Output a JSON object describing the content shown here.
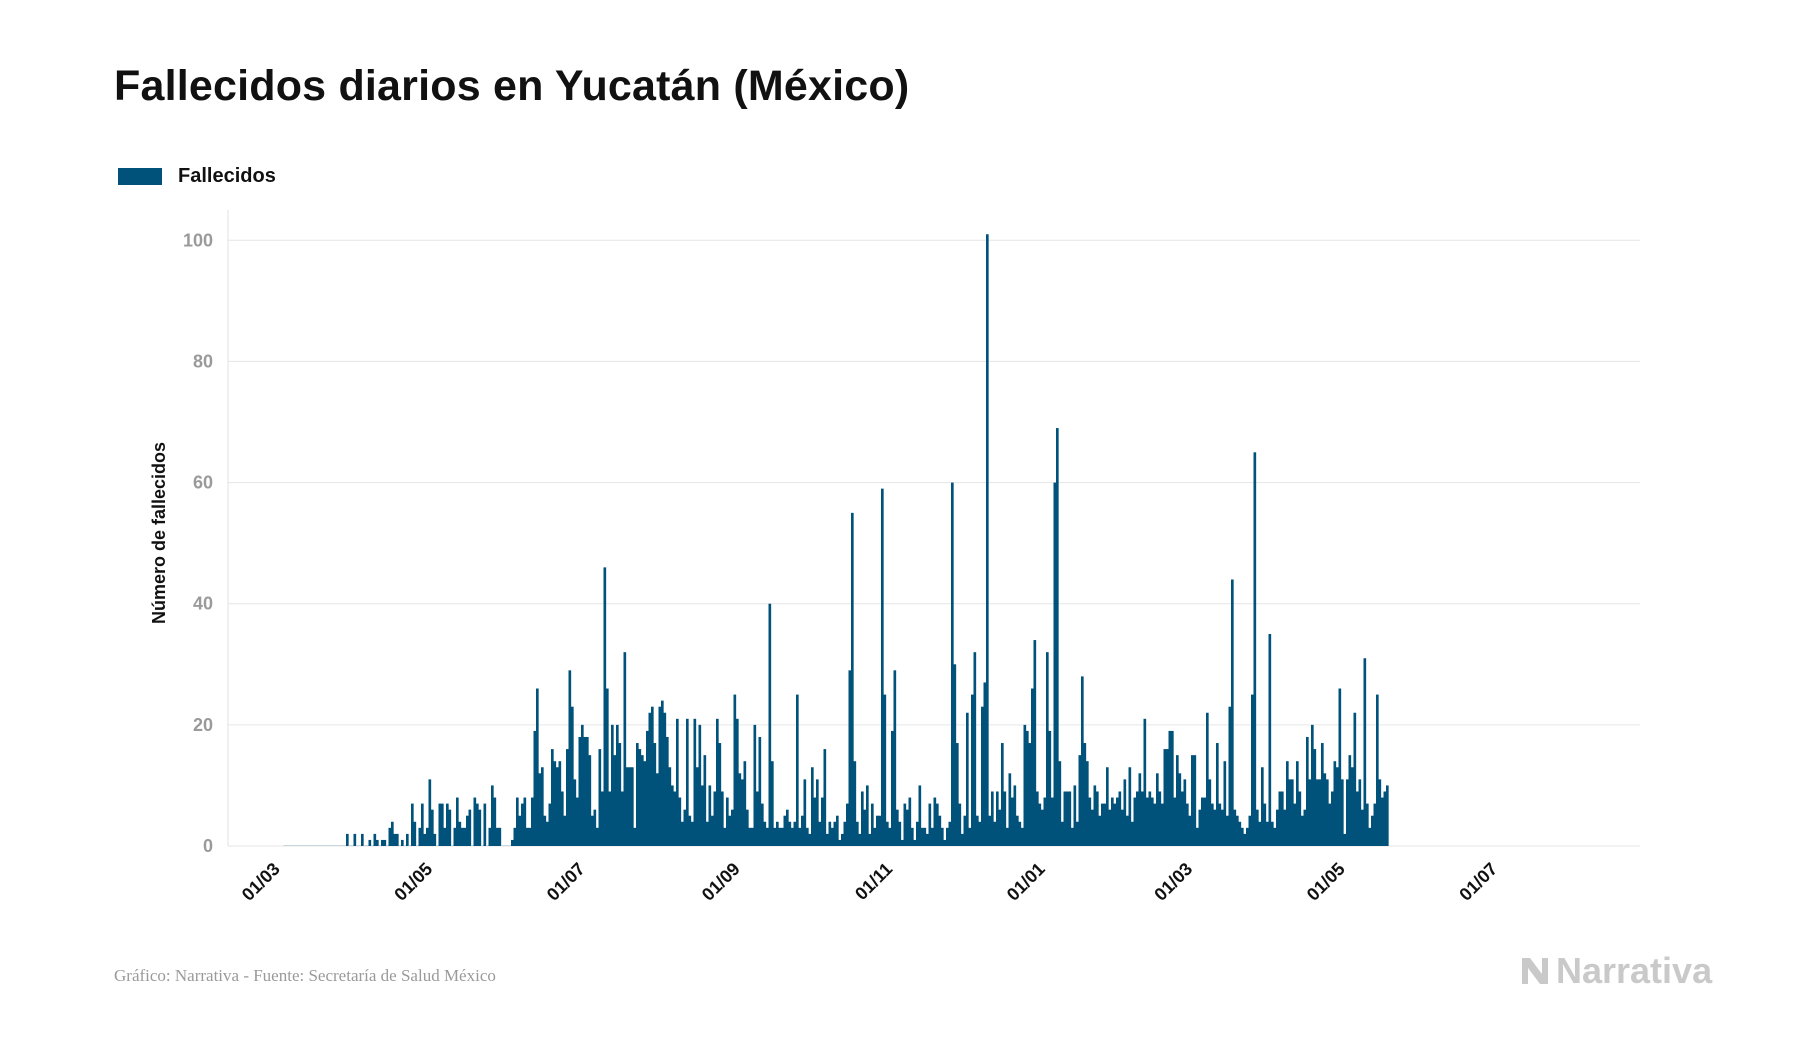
{
  "chart_data": {
    "type": "bar",
    "title": "Fallecidos diarios en Yucatán (México)",
    "ylabel": "Número de fallecidos",
    "xlabel": "",
    "ylim": [
      0,
      105
    ],
    "yticks": [
      0,
      20,
      40,
      60,
      80,
      100
    ],
    "legend_position": "top-left",
    "grid": true,
    "x_ticks": [
      {
        "date": "2020-03-01",
        "label": "01/03"
      },
      {
        "date": "2020-05-01",
        "label": "01/05"
      },
      {
        "date": "2020-07-01",
        "label": "01/07"
      },
      {
        "date": "2020-09-01",
        "label": "01/09"
      },
      {
        "date": "2020-11-01",
        "label": "01/11"
      },
      {
        "date": "2021-01-01",
        "label": "01/01"
      },
      {
        "date": "2021-03-01",
        "label": "01/03"
      },
      {
        "date": "2021-05-01",
        "label": "01/05"
      },
      {
        "date": "2021-07-01",
        "label": "01/07"
      }
    ],
    "x_start": "2020-02-24",
    "series": [
      {
        "name": "Fallecidos",
        "color": "#00527a",
        "start_date": "2020-03-14",
        "values": [
          0,
          0,
          0,
          0,
          0,
          0,
          0,
          0,
          0,
          0,
          0,
          0,
          0,
          0,
          0,
          0,
          0,
          0,
          0,
          0,
          0,
          0,
          0,
          0,
          0,
          2,
          0,
          0,
          2,
          0,
          0,
          2,
          0,
          0,
          1,
          0,
          2,
          1,
          0,
          1,
          1,
          0,
          3,
          4,
          2,
          2,
          0,
          1,
          0,
          2,
          0,
          7,
          4,
          0,
          3,
          7,
          2,
          3,
          11,
          6,
          2,
          0,
          7,
          7,
          3,
          7,
          6,
          0,
          3,
          8,
          4,
          3,
          3,
          5,
          6,
          0,
          8,
          7,
          6,
          0,
          7,
          0,
          3,
          10,
          8,
          3,
          3,
          0,
          0,
          0,
          0,
          1,
          3,
          8,
          5,
          7,
          8,
          3,
          3,
          8,
          19,
          26,
          12,
          13,
          5,
          4,
          7,
          16,
          14,
          13,
          14,
          9,
          5,
          16,
          29,
          23,
          11,
          8,
          18,
          20,
          18,
          18,
          15,
          5,
          6,
          3,
          16,
          9,
          46,
          26,
          9,
          20,
          15,
          20,
          17,
          9,
          32,
          13,
          13,
          13,
          3,
          17,
          16,
          15,
          14,
          19,
          22,
          23,
          17,
          12,
          23,
          24,
          22,
          18,
          13,
          10,
          9,
          21,
          8,
          4,
          6,
          21,
          5,
          4,
          21,
          13,
          20,
          10,
          15,
          4,
          10,
          5,
          9,
          21,
          17,
          9,
          3,
          8,
          5,
          6,
          25,
          21,
          12,
          11,
          14,
          6,
          3,
          3,
          20,
          9,
          18,
          7,
          4,
          3,
          40,
          14,
          3,
          4,
          3,
          3,
          5,
          6,
          4,
          3,
          4,
          25,
          3,
          5,
          11,
          3,
          2,
          13,
          8,
          11,
          4,
          8,
          16,
          2,
          4,
          3,
          4,
          5,
          1,
          2,
          4,
          7,
          29,
          55,
          14,
          4,
          2,
          9,
          6,
          10,
          2,
          7,
          3,
          5,
          5,
          59,
          25,
          4,
          3,
          19,
          29,
          6,
          4,
          1,
          7,
          6,
          8,
          3,
          1,
          4,
          10,
          3,
          3,
          2,
          7,
          3,
          8,
          7,
          5,
          3,
          1,
          3,
          4,
          60,
          30,
          17,
          7,
          2,
          5,
          22,
          3,
          25,
          32,
          5,
          4,
          23,
          27,
          101,
          5,
          9,
          4,
          9,
          6,
          17,
          9,
          3,
          12,
          8,
          10,
          5,
          4,
          3,
          20,
          19,
          17,
          26,
          34,
          9,
          7,
          6,
          8,
          32,
          19,
          8,
          60,
          69,
          14,
          4,
          9,
          9,
          9,
          3,
          10,
          4,
          15,
          28,
          17,
          14,
          8,
          6,
          10,
          9,
          5,
          7,
          7,
          13,
          6,
          8,
          7,
          8,
          9,
          6,
          11,
          5,
          13,
          4,
          8,
          9,
          12,
          9,
          21,
          8,
          9,
          8,
          7,
          12,
          9,
          7,
          16,
          16,
          19,
          19,
          8,
          15,
          12,
          9,
          11,
          7,
          5,
          15,
          15,
          3,
          6,
          8,
          8,
          22,
          11,
          7,
          6,
          17,
          7,
          6,
          14,
          5,
          23,
          44,
          6,
          5,
          4,
          3,
          2,
          3,
          5,
          25,
          65,
          6,
          4,
          13,
          7,
          4,
          35,
          4,
          3,
          6,
          9,
          9,
          6,
          14,
          11,
          11,
          7,
          14,
          9,
          5,
          6,
          18,
          11,
          20,
          16,
          11,
          11,
          17,
          12,
          11,
          7,
          9,
          14,
          13,
          26,
          11,
          2,
          11,
          15,
          13,
          22,
          9,
          11,
          6,
          31,
          7,
          3,
          5,
          7,
          25,
          11,
          8,
          9,
          10
        ]
      }
    ]
  },
  "footer": {
    "source": "Gráfico: Narrativa - Fuente: Secretaría de Salud México",
    "brand": "Narrativa"
  }
}
